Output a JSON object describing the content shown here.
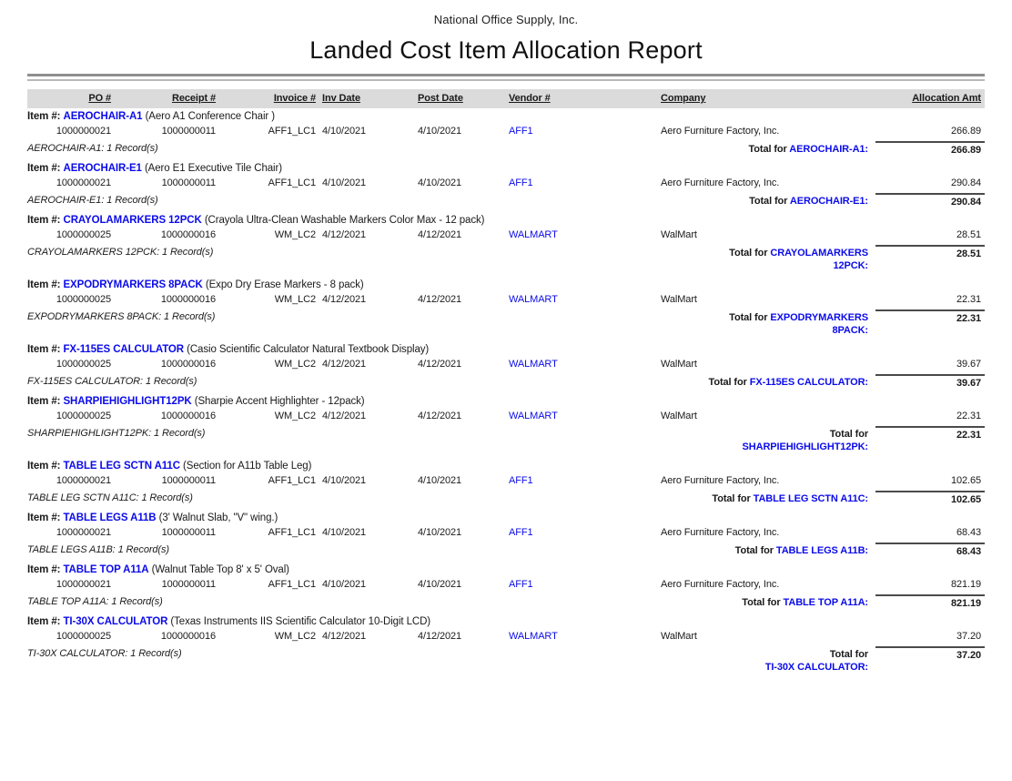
{
  "header": {
    "company": "National Office Supply, Inc.",
    "title": "Landed Cost Item Allocation Report"
  },
  "labels": {
    "item_prefix": "Item #:",
    "total_prefix": "Total for"
  },
  "colors": {
    "link_blue": "#0b0bea",
    "header_band": "#dbdbdb"
  },
  "columns": {
    "po": "PO #",
    "receipt": "Receipt #",
    "invoice": "Invoice #",
    "inv_date": "Inv Date",
    "post_date": "Post Date",
    "vendor": "Vendor #",
    "company": "Company",
    "allocation": "Allocation Amt"
  },
  "groups": [
    {
      "item_code": "AEROCHAIR-A1",
      "item_desc": "(Aero A1 Conference Chair )",
      "row": {
        "po": "1000000021",
        "receipt": "1000000011",
        "invoice": "AFF1_LC1",
        "inv_date": "4/10/2021",
        "post_date": "4/10/2021",
        "vendor": "AFF1",
        "company": "Aero Furniture Factory, Inc.",
        "amount": "266.89"
      },
      "records_text": "AEROCHAIR-A1: 1 Record(s)",
      "total": {
        "line1_blue": "AEROCHAIR-A1:",
        "line2_blue": "",
        "amount": "266.89"
      }
    },
    {
      "item_code": "AEROCHAIR-E1",
      "item_desc": "(Aero E1 Executive Tile Chair)",
      "row": {
        "po": "1000000021",
        "receipt": "1000000011",
        "invoice": "AFF1_LC1",
        "inv_date": "4/10/2021",
        "post_date": "4/10/2021",
        "vendor": "AFF1",
        "company": "Aero Furniture Factory, Inc.",
        "amount": "290.84"
      },
      "records_text": "AEROCHAIR-E1: 1 Record(s)",
      "total": {
        "line1_blue": "AEROCHAIR-E1:",
        "line2_blue": "",
        "amount": "290.84"
      }
    },
    {
      "item_code": "CRAYOLAMARKERS 12PCK",
      "item_desc": "(Crayola Ultra-Clean Washable Markers Color Max - 12 pack)",
      "row": {
        "po": "1000000025",
        "receipt": "1000000016",
        "invoice": "WM_LC2",
        "inv_date": "4/12/2021",
        "post_date": "4/12/2021",
        "vendor": "WALMART",
        "company": "WalMart",
        "amount": "28.51"
      },
      "records_text": "CRAYOLAMARKERS 12PCK: 1 Record(s)",
      "total": {
        "line1_blue": "CRAYOLAMARKERS",
        "line2_blue": "12PCK:",
        "amount": "28.51"
      }
    },
    {
      "item_code": "EXPODRYMARKERS 8PACK",
      "item_desc": "(Expo Dry Erase Markers - 8 pack)",
      "row": {
        "po": "1000000025",
        "receipt": "1000000016",
        "invoice": "WM_LC2",
        "inv_date": "4/12/2021",
        "post_date": "4/12/2021",
        "vendor": "WALMART",
        "company": "WalMart",
        "amount": "22.31"
      },
      "records_text": "EXPODRYMARKERS 8PACK: 1 Record(s)",
      "total": {
        "line1_blue": "EXPODRYMARKERS",
        "line2_blue": "8PACK:",
        "amount": "22.31"
      }
    },
    {
      "item_code": "FX-115ES CALCULATOR",
      "item_desc": "(Casio Scientific Calculator Natural Textbook Display)",
      "row": {
        "po": "1000000025",
        "receipt": "1000000016",
        "invoice": "WM_LC2",
        "inv_date": "4/12/2021",
        "post_date": "4/12/2021",
        "vendor": "WALMART",
        "company": "WalMart",
        "amount": "39.67"
      },
      "records_text": "FX-115ES CALCULATOR: 1 Record(s)",
      "total": {
        "line1_blue": "FX-115ES CALCULATOR:",
        "line2_blue": "",
        "amount": "39.67"
      }
    },
    {
      "item_code": "SHARPIEHIGHLIGHT12PK",
      "item_desc": "(Sharpie Accent Highlighter - 12pack)",
      "row": {
        "po": "1000000025",
        "receipt": "1000000016",
        "invoice": "WM_LC2",
        "inv_date": "4/12/2021",
        "post_date": "4/12/2021",
        "vendor": "WALMART",
        "company": "WalMart",
        "amount": "22.31"
      },
      "records_text": "SHARPIEHIGHLIGHT12PK: 1 Record(s)",
      "total": {
        "line1_blue": "",
        "line2_blue": "SHARPIEHIGHLIGHT12PK:",
        "amount": "22.31"
      }
    },
    {
      "item_code": "TABLE LEG SCTN A11C",
      "item_desc": "(Section for A11b Table Leg)",
      "row": {
        "po": "1000000021",
        "receipt": "1000000011",
        "invoice": "AFF1_LC1",
        "inv_date": "4/10/2021",
        "post_date": "4/10/2021",
        "vendor": "AFF1",
        "company": "Aero Furniture Factory, Inc.",
        "amount": "102.65"
      },
      "records_text": "TABLE LEG SCTN A11C: 1 Record(s)",
      "total": {
        "line1_blue": "TABLE LEG SCTN A11C:",
        "line2_blue": "",
        "amount": "102.65"
      }
    },
    {
      "item_code": "TABLE LEGS A11B",
      "item_desc": "(3' Walnut Slab, \"V\" wing.)",
      "row": {
        "po": "1000000021",
        "receipt": "1000000011",
        "invoice": "AFF1_LC1",
        "inv_date": "4/10/2021",
        "post_date": "4/10/2021",
        "vendor": "AFF1",
        "company": "Aero Furniture Factory, Inc.",
        "amount": "68.43"
      },
      "records_text": "TABLE LEGS A11B: 1 Record(s)",
      "total": {
        "line1_blue": "TABLE LEGS A11B:",
        "line2_blue": "",
        "amount": "68.43"
      }
    },
    {
      "item_code": "TABLE TOP A11A",
      "item_desc": "(Walnut Table Top 8' x 5' Oval)",
      "row": {
        "po": "1000000021",
        "receipt": "1000000011",
        "invoice": "AFF1_LC1",
        "inv_date": "4/10/2021",
        "post_date": "4/10/2021",
        "vendor": "AFF1",
        "company": "Aero Furniture Factory, Inc.",
        "amount": "821.19"
      },
      "records_text": "TABLE TOP A11A: 1 Record(s)",
      "total": {
        "line1_blue": "TABLE TOP A11A:",
        "line2_blue": "",
        "amount": "821.19"
      }
    },
    {
      "item_code": "TI-30X CALCULATOR",
      "item_desc": "(Texas Instruments IIS Scientific Calculator 10-Digit LCD)",
      "row": {
        "po": "1000000025",
        "receipt": "1000000016",
        "invoice": "WM_LC2",
        "inv_date": "4/12/2021",
        "post_date": "4/12/2021",
        "vendor": "WALMART",
        "company": "WalMart",
        "amount": "37.20"
      },
      "records_text": "TI-30X CALCULATOR: 1 Record(s)",
      "total": {
        "line1_blue": "",
        "line2_blue": "TI-30X CALCULATOR:",
        "amount": "37.20"
      }
    }
  ]
}
